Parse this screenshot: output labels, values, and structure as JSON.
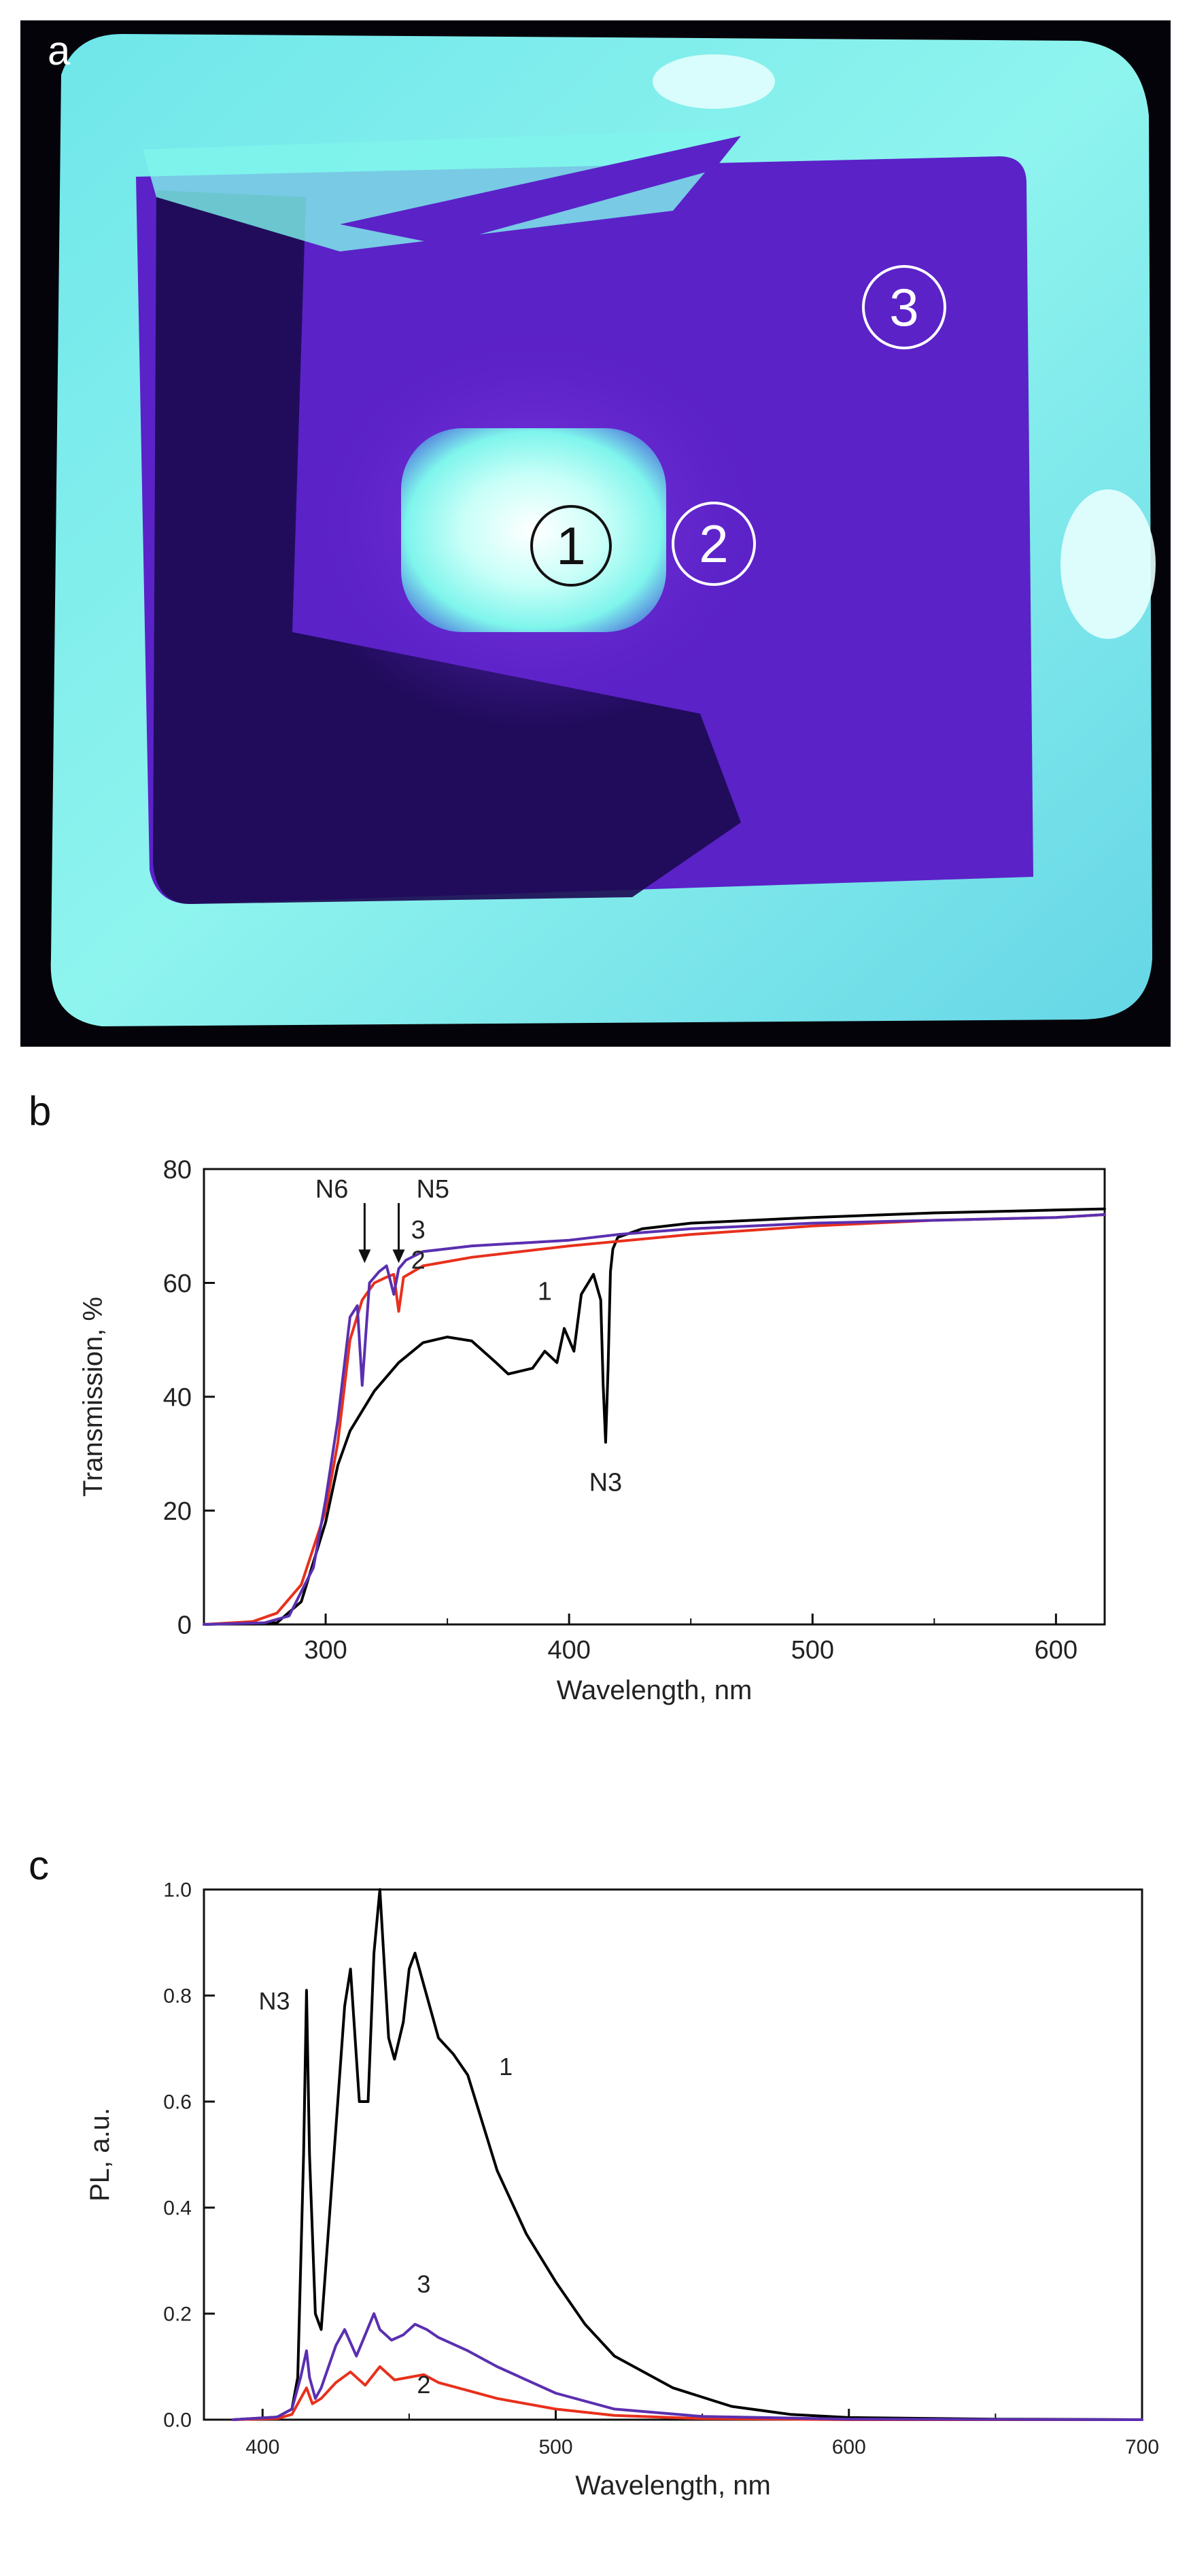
{
  "panels": {
    "a": "a",
    "b": "b",
    "c": "c"
  },
  "photo": {
    "regions": [
      "1",
      "2",
      "3"
    ],
    "colors": {
      "background": "#05030a",
      "glow": "#7ff5ec",
      "body": "#5b22c8",
      "dark": "#1c0b52"
    }
  },
  "chart_data": [
    {
      "type": "line",
      "title": "",
      "xlabel": "Wavelength, nm",
      "ylabel": "Transmission, %",
      "xlim": [
        250,
        620
      ],
      "ylim": [
        0,
        80
      ],
      "xticks": [
        300,
        400,
        500,
        600
      ],
      "yticks": [
        0,
        20,
        40,
        60,
        80
      ],
      "grid": false,
      "series": [
        {
          "name": "1",
          "color": "#000000",
          "x": [
            250,
            280,
            290,
            300,
            305,
            310,
            320,
            330,
            340,
            350,
            360,
            370,
            375,
            380,
            385,
            390,
            395,
            398,
            402,
            405,
            410,
            413,
            414,
            415,
            416,
            417,
            418,
            420,
            430,
            450,
            500,
            550,
            600,
            620
          ],
          "y": [
            0,
            0.3,
            4,
            18,
            28,
            34,
            41,
            46,
            49.5,
            50.5,
            49.8,
            46,
            44,
            44.5,
            45,
            48,
            46,
            52,
            48,
            58,
            61.5,
            57,
            42,
            32,
            45,
            62,
            66,
            68,
            69.5,
            70.5,
            71.5,
            72.3,
            72.8,
            73
          ]
        },
        {
          "name": "2",
          "color": "#e8301c",
          "x": [
            250,
            270,
            280,
            290,
            300,
            305,
            310,
            315,
            320,
            325,
            328,
            330,
            332,
            340,
            360,
            400,
            450,
            500,
            550,
            600,
            620
          ],
          "y": [
            0,
            0.5,
            2,
            7,
            20,
            32,
            50,
            57,
            60,
            61,
            61.5,
            55,
            61,
            63,
            64.5,
            66.5,
            68.5,
            70,
            71,
            71.5,
            72
          ]
        },
        {
          "name": "3",
          "color": "#5a2fb0",
          "x": [
            250,
            275,
            285,
            295,
            300,
            305,
            310,
            313,
            315,
            318,
            322,
            325,
            328,
            330,
            333,
            340,
            360,
            400,
            420,
            450,
            500,
            550,
            600,
            620
          ],
          "y": [
            0,
            0.3,
            1.5,
            10,
            22,
            36,
            54,
            56,
            42,
            60,
            62,
            63,
            58,
            62.5,
            64,
            65.5,
            66.5,
            67.5,
            68.5,
            69.5,
            70.5,
            71,
            71.5,
            72
          ]
        }
      ],
      "curve_labels": [
        {
          "text": "3",
          "x": 338,
          "y": 67.8
        },
        {
          "text": "2",
          "x": 338,
          "y": 62.5
        },
        {
          "text": "1",
          "x": 390,
          "y": 57
        }
      ],
      "annotations": [
        {
          "text": "N6",
          "x": 316,
          "y": 63,
          "arrow": true
        },
        {
          "text": "N5",
          "x": 330,
          "y": 63,
          "arrow": true
        },
        {
          "text": "N3",
          "x": 415,
          "y": 28,
          "arrow": false
        }
      ]
    },
    {
      "type": "line",
      "title": "",
      "xlabel": "Wavelength, nm",
      "ylabel": "PL, a.u.",
      "xlim": [
        380,
        700
      ],
      "ylim": [
        0,
        1.0
      ],
      "xticks": [
        400,
        500,
        600,
        700
      ],
      "yticks": [
        "0.0",
        "0.2",
        "0.4",
        "0.6",
        "0.8",
        "1.0"
      ],
      "grid": false,
      "series": [
        {
          "name": "1",
          "color": "#000000",
          "x": [
            390,
            405,
            410,
            412,
            414,
            415,
            416,
            418,
            420,
            425,
            428,
            430,
            433,
            436,
            438,
            440,
            443,
            445,
            448,
            450,
            452,
            455,
            460,
            465,
            470,
            475,
            480,
            490,
            500,
            510,
            520,
            540,
            560,
            580,
            600,
            650,
            700
          ],
          "y": [
            0,
            0.005,
            0.02,
            0.08,
            0.5,
            0.81,
            0.5,
            0.2,
            0.17,
            0.55,
            0.78,
            0.85,
            0.6,
            0.6,
            0.88,
            1.0,
            0.72,
            0.68,
            0.75,
            0.85,
            0.88,
            0.82,
            0.72,
            0.69,
            0.65,
            0.56,
            0.47,
            0.35,
            0.26,
            0.18,
            0.12,
            0.06,
            0.025,
            0.01,
            0.004,
            0.001,
            0.0
          ]
        },
        {
          "name": "2",
          "color": "#e8301c",
          "x": [
            390,
            405,
            410,
            413,
            415,
            417,
            420,
            425,
            430,
            435,
            440,
            445,
            450,
            455,
            460,
            470,
            480,
            500,
            520,
            550,
            600,
            700
          ],
          "y": [
            0,
            0.002,
            0.01,
            0.04,
            0.06,
            0.03,
            0.04,
            0.07,
            0.09,
            0.065,
            0.1,
            0.075,
            0.08,
            0.085,
            0.07,
            0.055,
            0.04,
            0.02,
            0.008,
            0.002,
            0.0,
            0.0
          ]
        },
        {
          "name": "3",
          "color": "#5a2fb0",
          "x": [
            390,
            405,
            410,
            413,
            415,
            416,
            418,
            420,
            425,
            428,
            432,
            435,
            438,
            440,
            444,
            448,
            452,
            456,
            460,
            470,
            480,
            500,
            520,
            550,
            600,
            700
          ],
          "y": [
            0,
            0.005,
            0.02,
            0.08,
            0.13,
            0.08,
            0.04,
            0.06,
            0.14,
            0.17,
            0.12,
            0.16,
            0.2,
            0.17,
            0.15,
            0.16,
            0.18,
            0.17,
            0.155,
            0.13,
            0.1,
            0.05,
            0.02,
            0.006,
            0.001,
            0.0
          ]
        }
      ],
      "curve_labels": [
        {
          "text": "1",
          "x": 483,
          "y": 0.65
        },
        {
          "text": "3",
          "x": 455,
          "y": 0.24
        },
        {
          "text": "2",
          "x": 455,
          "y": 0.05
        }
      ],
      "annotations": [
        {
          "text": "N3",
          "x": 404,
          "y": 0.82,
          "arrow": false
        }
      ]
    }
  ]
}
